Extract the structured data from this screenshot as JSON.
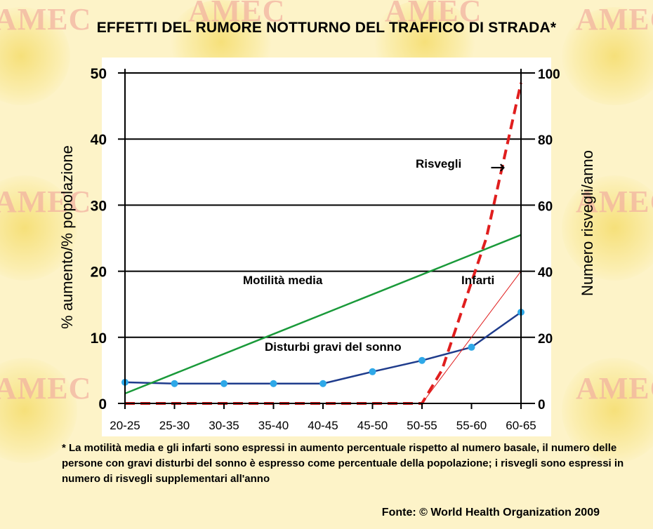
{
  "watermark": "AMEC",
  "title": "EFFETTI DEL RUMORE NOTTURNO DEL TRAFFICO DI STRADA*",
  "footnote": "* La motilità media e gli infarti sono espressi in aumento percentuale rispetto al numero basale, il numero delle persone con gravi disturbi del sonno è espresso come percentuale della popolazione; i risvegli sono espressi in numero di risvegli supplementari all'anno",
  "source": "Fonte: © World Health Organization 2009",
  "chart_data": {
    "type": "line",
    "categories": [
      "20-25",
      "25-30",
      "30-35",
      "35-40",
      "40-45",
      "45-50",
      "50-55",
      "55-60",
      "60-65"
    ],
    "ylabel": "% aumento/% popolazione",
    "ylabel_right": "Numero risvegli/anno",
    "ylim": [
      0,
      50
    ],
    "ylim_right": [
      0,
      100
    ],
    "yticks": [
      0,
      10,
      20,
      30,
      40,
      50
    ],
    "yticks_right": [
      0,
      20,
      40,
      60,
      80,
      100
    ],
    "grid": "horizontal",
    "series": [
      {
        "name": "Disturbi gravi del sonno",
        "axis": "left",
        "style": "solid-markers",
        "color": "#1f3c8c",
        "marker_color": "#2ea8e8",
        "x": [
          "20-25",
          "25-30",
          "30-35",
          "35-40",
          "40-45",
          "45-50",
          "50-55",
          "55-60",
          "60-65"
        ],
        "y": [
          3.2,
          3.0,
          3.0,
          3.0,
          3.0,
          4.8,
          6.5,
          8.5,
          13.8
        ]
      },
      {
        "name": "Motilità media",
        "axis": "left",
        "style": "solid",
        "color": "#1a9a3a",
        "x": [
          "20-25",
          "60-65"
        ],
        "y": [
          1.5,
          25.5
        ]
      },
      {
        "name": "Infarti",
        "axis": "left",
        "style": "thin",
        "color": "#e01e1e",
        "x": [
          "20-25",
          "50-55",
          "60-65"
        ],
        "y": [
          0,
          0,
          20
        ]
      },
      {
        "name": "Risvegli",
        "axis": "right",
        "style": "dashed",
        "color": "#e01e1e",
        "x": [
          0,
          6,
          6.4,
          7.3,
          8.0
        ],
        "y": [
          0,
          0,
          10,
          50,
          97
        ]
      }
    ],
    "annotations": [
      {
        "text": "Risvegli",
        "arrow": "→"
      },
      {
        "text": "Motilità media"
      },
      {
        "text": "Infarti"
      },
      {
        "text": "Disturbi gravi del sonno"
      }
    ]
  }
}
